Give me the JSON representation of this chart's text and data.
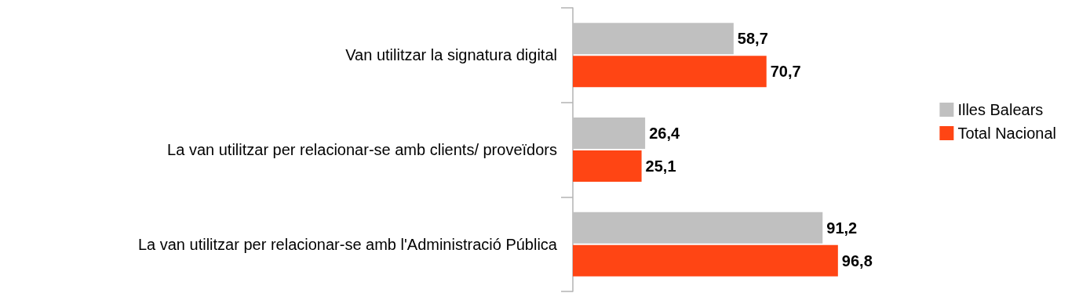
{
  "chart_data": {
    "type": "bar",
    "orientation": "horizontal",
    "categories": [
      "Van utilitzar la signatura digital",
      "La van utilitzar per relacionar-se amb clients/ proveïdors",
      "La van utilitzar per relacionar-se amb l'Administració Pública"
    ],
    "series": [
      {
        "name": "Illes Balears",
        "color": "#c0c0c0",
        "values": [
          58.7,
          26.4,
          91.2
        ],
        "value_labels": [
          "58,7",
          "26,4",
          "91,2"
        ]
      },
      {
        "name": "Total Nacional",
        "color": "#ff4514",
        "values": [
          70.7,
          25.1,
          96.8
        ],
        "value_labels": [
          "70,7",
          "25,1",
          "96,8"
        ]
      }
    ],
    "legend": "right",
    "grid": false
  }
}
